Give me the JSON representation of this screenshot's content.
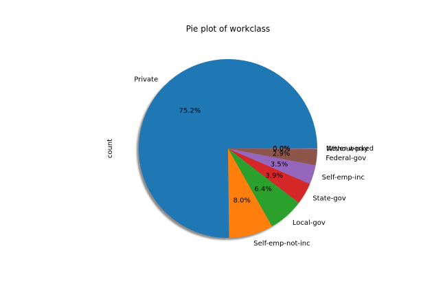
{
  "chart_data": {
    "type": "pie",
    "title": "Pie plot of workclass",
    "ylabel": "count",
    "start_angle_deg": 0,
    "direction": "counterclockwise",
    "shadow": true,
    "slices": [
      {
        "label": "Private",
        "value": 75.2,
        "pct_label": "75.2%",
        "color": "#1f77b4"
      },
      {
        "label": "Self-emp-not-inc",
        "value": 8.0,
        "pct_label": "8.0%",
        "color": "#ff7f0e"
      },
      {
        "label": "Local-gov",
        "value": 6.4,
        "pct_label": "6.4%",
        "color": "#2ca02c"
      },
      {
        "label": "State-gov",
        "value": 3.9,
        "pct_label": "3.9%",
        "color": "#d62728"
      },
      {
        "label": "Self-emp-inc",
        "value": 3.5,
        "pct_label": "3.5%",
        "color": "#9467bd"
      },
      {
        "label": "Federal-gov",
        "value": 2.9,
        "pct_label": "2.9%",
        "color": "#8c564b"
      },
      {
        "label": "Without-pay",
        "value": 0.05,
        "pct_label": "0.0%",
        "color": "#e377c2"
      },
      {
        "label": "Never-worked",
        "value": 0.05,
        "pct_label": "0.0%",
        "color": "#7f7f7f"
      }
    ]
  }
}
